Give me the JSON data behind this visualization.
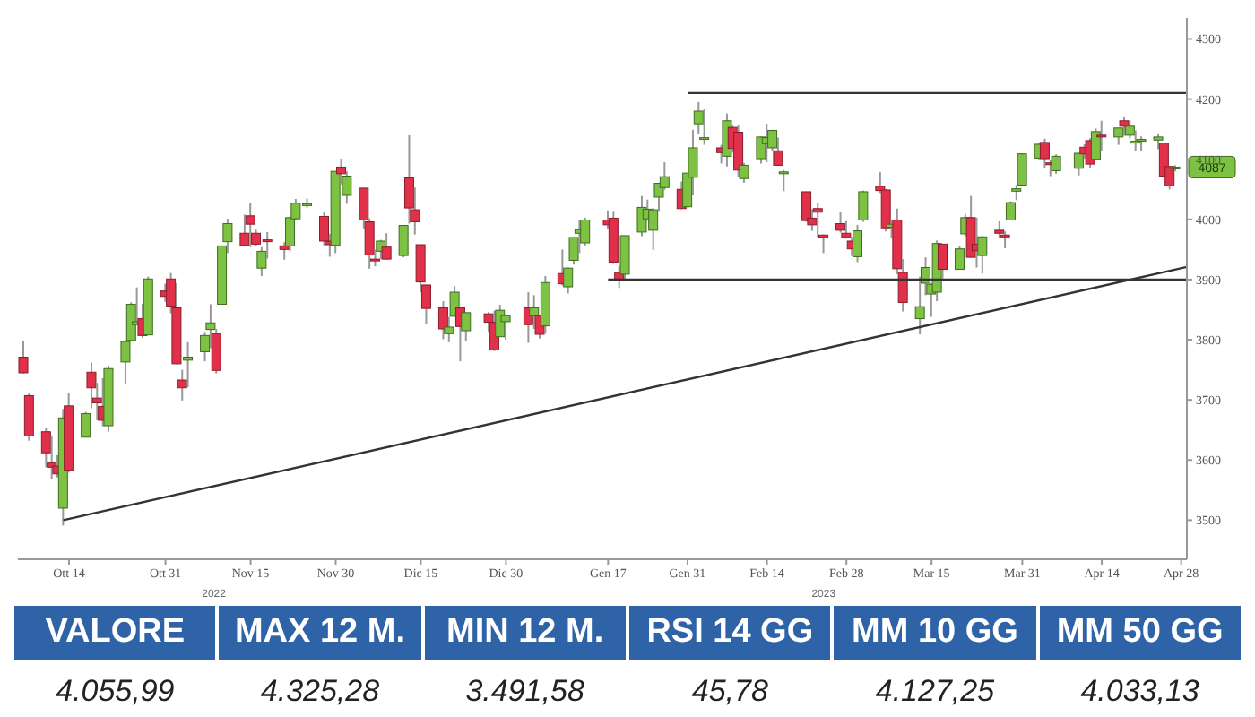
{
  "chart_data": [
    {
      "type": "candlestick",
      "tick_labels": "xy",
      "xlim": [
        "2022-10-05",
        "2023-04-29"
      ],
      "xticks": [
        {
          "value": "2022-10-14",
          "label": "Ott 14"
        },
        {
          "value": "2022-10-31",
          "label": "Ott 31"
        },
        {
          "value": "2022-11-15",
          "label": "Nov 15"
        },
        {
          "value": "2022-11-30",
          "label": "Nov 30"
        },
        {
          "value": "2022-12-15",
          "label": "Dic 15"
        },
        {
          "value": "2022-12-30",
          "label": "Dic 30"
        },
        {
          "value": "2023-01-17",
          "label": "Gen 17"
        },
        {
          "value": "2023-01-31",
          "label": "Gen 31"
        },
        {
          "value": "2023-02-14",
          "label": "Feb 14"
        },
        {
          "value": "2023-02-28",
          "label": "Feb 28"
        },
        {
          "value": "2023-03-15",
          "label": "Mar 15"
        },
        {
          "value": "2023-03-31",
          "label": "Mar 31"
        },
        {
          "value": "2023-04-14",
          "label": "Apr 14"
        },
        {
          "value": "2023-04-28",
          "label": "Apr 28"
        }
      ],
      "ylim": [
        3435,
        4335
      ],
      "yticks": [
        3500,
        3600,
        3700,
        3800,
        3900,
        4000,
        4100,
        4200,
        4300
      ],
      "x": [
        "2022-10-06",
        "2022-10-07",
        "2022-10-10",
        "2022-10-11",
        "2022-10-12",
        "2022-10-13",
        "2022-10-14",
        "2022-10-17",
        "2022-10-18",
        "2022-10-19",
        "2022-10-20",
        "2022-10-21",
        "2022-10-24",
        "2022-10-25",
        "2022-10-26",
        "2022-10-27",
        "2022-10-28",
        "2022-10-31",
        "2022-11-01",
        "2022-11-02",
        "2022-11-03",
        "2022-11-04",
        "2022-11-07",
        "2022-11-08",
        "2022-11-09",
        "2022-11-10",
        "2022-11-11",
        "2022-11-14",
        "2022-11-15",
        "2022-11-16",
        "2022-11-17",
        "2022-11-18",
        "2022-11-21",
        "2022-11-22",
        "2022-11-23",
        "2022-11-25",
        "2022-11-28",
        "2022-11-29",
        "2022-11-30",
        "2022-12-01",
        "2022-12-02",
        "2022-12-05",
        "2022-12-06",
        "2022-12-07",
        "2022-12-08",
        "2022-12-09",
        "2022-12-12",
        "2022-12-13",
        "2022-12-14",
        "2022-12-15",
        "2022-12-16",
        "2022-12-19",
        "2022-12-20",
        "2022-12-21",
        "2022-12-22",
        "2022-12-23",
        "2022-12-27",
        "2022-12-28",
        "2022-12-29",
        "2022-12-30",
        "2023-01-03",
        "2023-01-04",
        "2023-01-05",
        "2023-01-06",
        "2023-01-09",
        "2023-01-10",
        "2023-01-11",
        "2023-01-12",
        "2023-01-13",
        "2023-01-17",
        "2023-01-18",
        "2023-01-19",
        "2023-01-20",
        "2023-01-23",
        "2023-01-24",
        "2023-01-25",
        "2023-01-26",
        "2023-01-27",
        "2023-01-30",
        "2023-01-31",
        "2023-02-01",
        "2023-02-02",
        "2023-02-03",
        "2023-02-06",
        "2023-02-07",
        "2023-02-08",
        "2023-02-09",
        "2023-02-10",
        "2023-02-13",
        "2023-02-14",
        "2023-02-15",
        "2023-02-16",
        "2023-02-17",
        "2023-02-21",
        "2023-02-22",
        "2023-02-23",
        "2023-02-24",
        "2023-02-27",
        "2023-02-28",
        "2023-03-01",
        "2023-03-02",
        "2023-03-03",
        "2023-03-06",
        "2023-03-07",
        "2023-03-08",
        "2023-03-09",
        "2023-03-10",
        "2023-03-13",
        "2023-03-14",
        "2023-03-15",
        "2023-03-16",
        "2023-03-17",
        "2023-03-20",
        "2023-03-21",
        "2023-03-22",
        "2023-03-23",
        "2023-03-24",
        "2023-03-27",
        "2023-03-28",
        "2023-03-29",
        "2023-03-30",
        "2023-03-31",
        "2023-04-03",
        "2023-04-04",
        "2023-04-05",
        "2023-04-06",
        "2023-04-10",
        "2023-04-11",
        "2023-04-12",
        "2023-04-13",
        "2023-04-14",
        "2023-04-17",
        "2023-04-18",
        "2023-04-19",
        "2023-04-20",
        "2023-04-21",
        "2023-04-24",
        "2023-04-25",
        "2023-04-26",
        "2023-04-27"
      ],
      "ohlc": [
        [
          3771,
          3797,
          3744,
          3745
        ],
        [
          3707,
          3711,
          3632,
          3640
        ],
        [
          3647,
          3653,
          3588,
          3612
        ],
        [
          3595,
          3641,
          3569,
          3588
        ],
        [
          3590,
          3608,
          3571,
          3577
        ],
        [
          3520,
          3685,
          3491,
          3670
        ],
        [
          3690,
          3712,
          3579,
          3583
        ],
        [
          3638,
          3680,
          3638,
          3677
        ],
        [
          3746,
          3762,
          3686,
          3720
        ],
        [
          3703,
          3728,
          3666,
          3695
        ],
        [
          3689,
          3736,
          3656,
          3666
        ],
        [
          3657,
          3757,
          3647,
          3752
        ],
        [
          3763,
          3799,
          3726,
          3797
        ],
        [
          3799,
          3862,
          3799,
          3859
        ],
        [
          3825,
          3887,
          3825,
          3830
        ],
        [
          3835,
          3860,
          3803,
          3807
        ],
        [
          3808,
          3905,
          3808,
          3901
        ],
        [
          3881,
          3893,
          3863,
          3872
        ],
        [
          3901,
          3911,
          3844,
          3856
        ],
        [
          3853,
          3894,
          3759,
          3760
        ],
        [
          3733,
          3750,
          3699,
          3720
        ],
        [
          3766,
          3796,
          3721,
          3771
        ],
        [
          3780,
          3813,
          3764,
          3807
        ],
        [
          3817,
          3859,
          3786,
          3828
        ],
        [
          3810,
          3818,
          3744,
          3749
        ],
        [
          3859,
          3956,
          3859,
          3956
        ],
        [
          3963,
          4001,
          3944,
          3993
        ],
        [
          3977,
          4008,
          3957,
          3957
        ],
        [
          4006,
          4028,
          3954,
          3992
        ],
        [
          3977,
          3983,
          3955,
          3959
        ],
        [
          3919,
          3954,
          3906,
          3947
        ],
        [
          3966,
          3979,
          3935,
          3965
        ],
        [
          3956,
          3962,
          3933,
          3950
        ],
        [
          3956,
          4004,
          3947,
          4003
        ],
        [
          4001,
          4034,
          3999,
          4027
        ],
        [
          4023,
          4035,
          4020,
          4026
        ],
        [
          4005,
          4013,
          3956,
          3964
        ],
        [
          3964,
          3976,
          3938,
          3958
        ],
        [
          3957,
          4080,
          3944,
          4080
        ],
        [
          4087,
          4101,
          4058,
          4076
        ],
        [
          4040,
          4080,
          4026,
          4072
        ],
        [
          4052,
          4052,
          3985,
          3999
        ],
        [
          3996,
          4002,
          3918,
          3941
        ],
        [
          3934,
          3950,
          3922,
          3933
        ],
        [
          3947,
          3966,
          3934,
          3964
        ],
        [
          3954,
          3977,
          3933,
          3934
        ],
        [
          3940,
          3990,
          3937,
          3990
        ],
        [
          4069,
          4140,
          3993,
          4019
        ],
        [
          4016,
          4053,
          3975,
          3996
        ],
        [
          3958,
          3958,
          3879,
          3896
        ],
        [
          3891,
          3891,
          3827,
          3852
        ],
        [
          3853,
          3864,
          3801,
          3818
        ],
        [
          3810,
          3838,
          3796,
          3821
        ],
        [
          3839,
          3889,
          3839,
          3879
        ],
        [
          3853,
          3853,
          3764,
          3822
        ],
        [
          3815,
          3845,
          3798,
          3845
        ],
        [
          3843,
          3846,
          3813,
          3829
        ],
        [
          3829,
          3848,
          3781,
          3783
        ],
        [
          3805,
          3858,
          3805,
          3849
        ],
        [
          3830,
          3840,
          3800,
          3840
        ],
        [
          3853,
          3879,
          3795,
          3825
        ],
        [
          3840,
          3874,
          3818,
          3853
        ],
        [
          3840,
          3840,
          3802,
          3809
        ],
        [
          3823,
          3906,
          3810,
          3895
        ],
        [
          3910,
          3950,
          3890,
          3893
        ],
        [
          3888,
          3920,
          3877,
          3919
        ],
        [
          3932,
          3970,
          3925,
          3970
        ],
        [
          3977,
          3998,
          3944,
          3983
        ],
        [
          3961,
          4003,
          3955,
          3999
        ],
        [
          3999,
          4015,
          3984,
          3991
        ],
        [
          4002,
          4014,
          3926,
          3929
        ],
        [
          3912,
          3922,
          3886,
          3899
        ],
        [
          3909,
          3973,
          3897,
          3973
        ],
        [
          3979,
          4039,
          3972,
          4020
        ],
        [
          4001,
          4033,
          3998,
          4017
        ],
        [
          3982,
          4019,
          3949,
          4016
        ],
        [
          4037,
          4061,
          4014,
          4060
        ],
        [
          4053,
          4095,
          4049,
          4071
        ],
        [
          4050,
          4063,
          4017,
          4018
        ],
        [
          4021,
          4077,
          4021,
          4077
        ],
        [
          4070,
          4149,
          4040,
          4119
        ],
        [
          4159,
          4195,
          4142,
          4180
        ],
        [
          4136,
          4183,
          4124,
          4136
        ],
        [
          4119,
          4124,
          4093,
          4111
        ],
        [
          4105,
          4176,
          4088,
          4164
        ],
        [
          4153,
          4156,
          4111,
          4118
        ],
        [
          4145,
          4157,
          4070,
          4082
        ],
        [
          4068,
          4094,
          4061,
          4090
        ],
        [
          4101,
          4138,
          4093,
          4137
        ],
        [
          4126,
          4159,
          4095,
          4136
        ],
        [
          4119,
          4149,
          4113,
          4148
        ],
        [
          4114,
          4136,
          4090,
          4090
        ],
        [
          4078,
          4082,
          4047,
          4079
        ],
        [
          4046,
          4046,
          3996,
          3998
        ],
        [
          4002,
          4017,
          3981,
          3991
        ],
        [
          4018,
          4028,
          3971,
          4012
        ],
        [
          3974,
          3975,
          3944,
          3970
        ],
        [
          3993,
          4012,
          3978,
          3982
        ],
        [
          3977,
          3997,
          3968,
          3970
        ],
        [
          3964,
          3971,
          3939,
          3951
        ],
        [
          3938,
          3991,
          3929,
          3981
        ],
        [
          3999,
          4048,
          3996,
          4046
        ],
        [
          4055,
          4079,
          4044,
          4048
        ],
        [
          4049,
          4051,
          3980,
          3986
        ],
        [
          3987,
          4000,
          3970,
          3992
        ],
        [
          3999,
          4018,
          3909,
          3918
        ],
        [
          3912,
          3934,
          3847,
          3862
        ],
        [
          3835,
          3905,
          3809,
          3855
        ],
        [
          3894,
          3937,
          3874,
          3920
        ],
        [
          3876,
          3894,
          3838,
          3892
        ],
        [
          3879,
          3965,
          3864,
          3960
        ],
        [
          3959,
          3959,
          3902,
          3917
        ],
        [
          3917,
          3956,
          3917,
          3951
        ],
        [
          3976,
          4009,
          3972,
          4003
        ],
        [
          4003,
          4039,
          3937,
          3937
        ],
        [
          3959,
          4003,
          3920,
          3948
        ],
        [
          3940,
          3972,
          3910,
          3971
        ],
        [
          3982,
          3997,
          3970,
          3977
        ],
        [
          3974,
          3980,
          3952,
          3971
        ],
        [
          3999,
          4030,
          3999,
          4028
        ],
        [
          4047,
          4057,
          4032,
          4051
        ],
        [
          4057,
          4110,
          4056,
          4109
        ],
        [
          4102,
          4128,
          4100,
          4125
        ],
        [
          4128,
          4134,
          4086,
          4101
        ],
        [
          4094,
          4099,
          4072,
          4091
        ],
        [
          4081,
          4108,
          4076,
          4105
        ],
        [
          4085,
          4110,
          4073,
          4110
        ],
        [
          4120,
          4125,
          4101,
          4109
        ],
        [
          4131,
          4135,
          4086,
          4092
        ],
        [
          4100,
          4151,
          4100,
          4146
        ],
        [
          4140,
          4164,
          4114,
          4138
        ],
        [
          4137,
          4152,
          4124,
          4152
        ],
        [
          4164,
          4170,
          4139,
          4155
        ],
        [
          4140,
          4164,
          4135,
          4155
        ],
        [
          4130,
          4148,
          4114,
          4130
        ],
        [
          4132,
          4138,
          4114,
          4133
        ],
        [
          4132,
          4143,
          4117,
          4137
        ],
        [
          4127,
          4127,
          4072,
          4072
        ],
        [
          4088,
          4089,
          4050,
          4056
        ],
        [
          4085,
          4090,
          4080,
          4087
        ]
      ],
      "series": [
        {
          "type": "line",
          "x": [
            "2022-10-13",
            "2023-04-29"
          ],
          "values": [
            3500,
            3921
          ],
          "color": "#333333"
        },
        {
          "type": "line",
          "x": [
            "2023-01-31",
            "2023-04-29"
          ],
          "values": [
            4210,
            4210
          ],
          "color": "#333333"
        },
        {
          "type": "line",
          "x": [
            "2023-01-17",
            "2023-04-29"
          ],
          "values": [
            3900,
            3900
          ],
          "color": "#333333"
        }
      ],
      "annotations": [
        "2022",
        "2023",
        {
          "text": "4087",
          "y": 4087
        }
      ]
    },
    {
      "type": "other",
      "categories": [
        "VALORE",
        "MAX 12 M.",
        "MIN 12 M.",
        "RSI 14 GG",
        "MM 10 GG",
        "MM 50 GG"
      ],
      "value_labels": [
        "4.055,99",
        "4.325,28",
        "3.491,58",
        "45,78",
        "4.127,25",
        "4.033,13"
      ]
    }
  ]
}
